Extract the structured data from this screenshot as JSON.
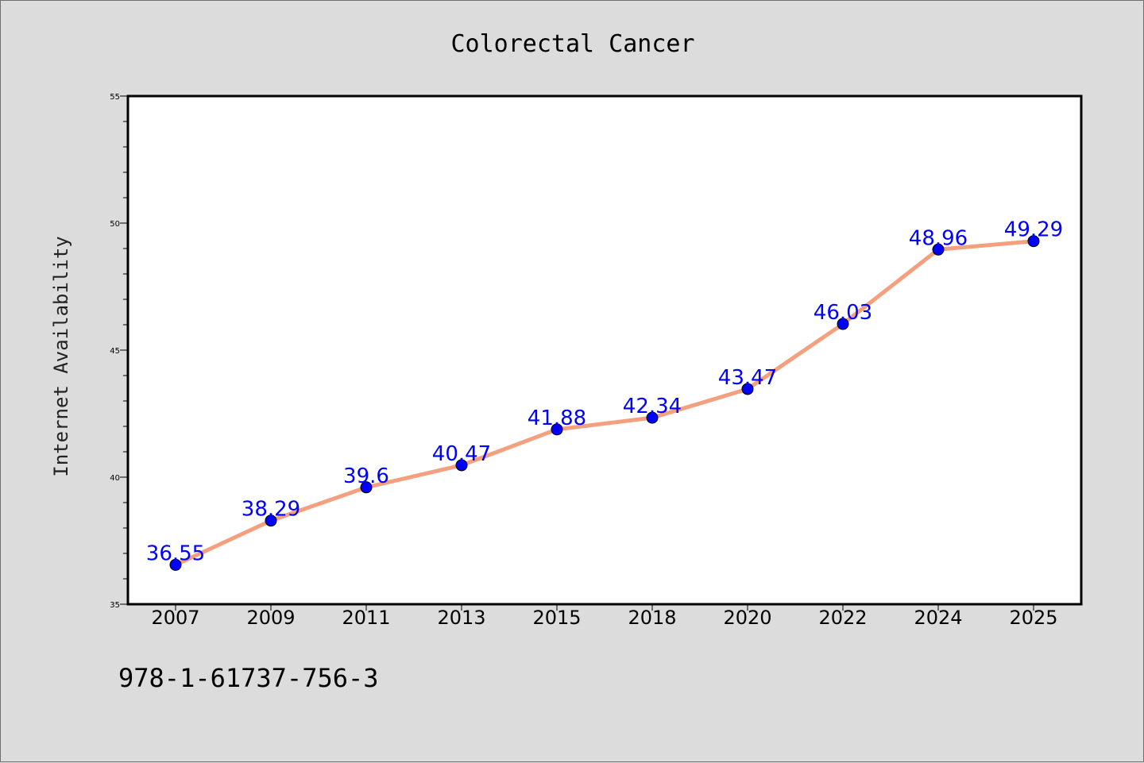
{
  "chart_data": {
    "type": "line",
    "title": "Colorectal Cancer",
    "xlabel": "",
    "ylabel": "Internet Availability",
    "categories": [
      "2007",
      "2009",
      "2011",
      "2013",
      "2015",
      "2018",
      "2020",
      "2022",
      "2024",
      "2025"
    ],
    "series": [
      {
        "values": [
          36.55,
          38.29,
          39.6,
          40.47,
          41.88,
          42.34,
          43.47,
          46.03,
          48.96,
          49.29
        ],
        "data_labels": [
          "36.55",
          "38.29",
          "39.6",
          "40.47",
          "41.88",
          "42.34",
          "43.47",
          "46.03",
          "48.96",
          "49.29"
        ],
        "line_color": "#f4a07e",
        "marker_color": "#0000ff"
      }
    ],
    "ylim": [
      35,
      55
    ],
    "yticks": [
      "35",
      "40",
      "45",
      "50",
      "55"
    ],
    "grid": false,
    "legend": "none",
    "plot_background": "#ffffff",
    "page_background": "#dcdcdc"
  },
  "footnote": "978-1-61737-756-3"
}
